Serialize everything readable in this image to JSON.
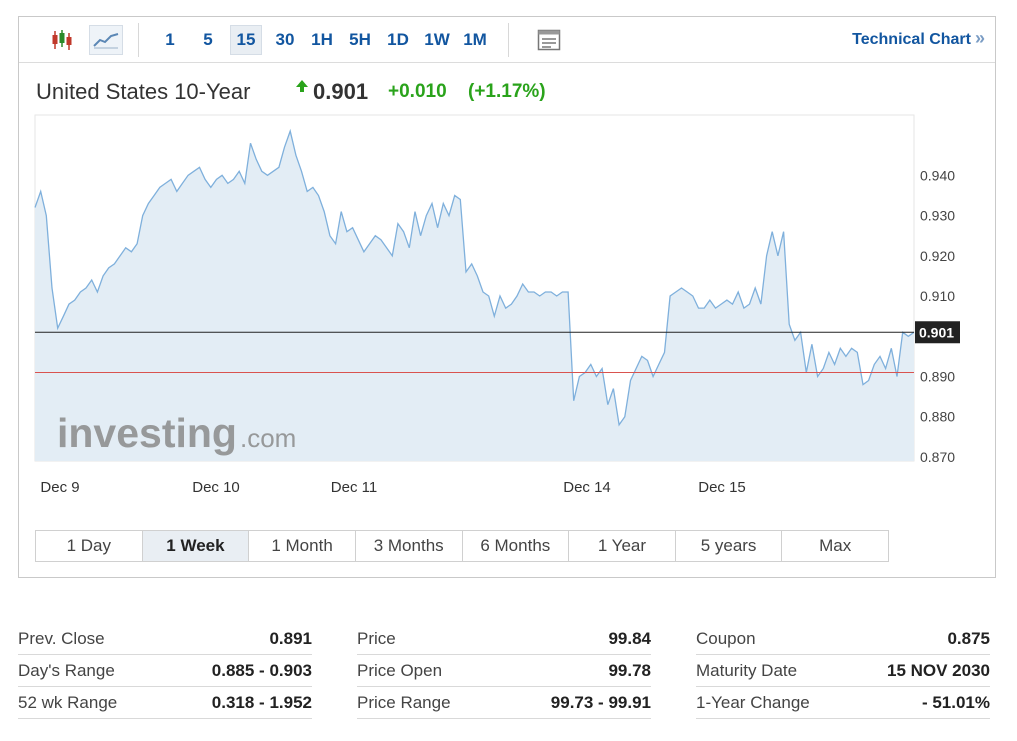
{
  "toolbar": {
    "chart_type_icons": [
      "candlestick-icon",
      "area-line-icon"
    ],
    "intervals": [
      "1",
      "5",
      "15",
      "30",
      "1H",
      "5H",
      "1D",
      "1W",
      "1M"
    ],
    "active_interval": "15",
    "table_icon": "table-icon",
    "technical_chart_label": "Technical Chart",
    "technical_chart_arrow": "»"
  },
  "quote": {
    "name": "United States 10-Year",
    "direction_icon": "up-arrow-icon",
    "last": "0.901",
    "change": "+0.010",
    "change_pct": "(+1.17%)",
    "up_color": "#2aa31b"
  },
  "watermark": {
    "brand": "investing",
    "suffix": ".com"
  },
  "chart_data": {
    "type": "area",
    "x_tick_labels": [
      "Dec 9",
      "Dec 10",
      "Dec 11",
      "Dec 14",
      "Dec 15"
    ],
    "y_tick_labels": [
      "0.940",
      "0.930",
      "0.920",
      "0.910",
      "0.901",
      "0.890",
      "0.880",
      "0.870"
    ],
    "ylim": [
      0.869,
      0.955
    ],
    "grid": false,
    "current_price_label": "0.901",
    "reference_lines": [
      {
        "value": 0.901,
        "color": "#222222",
        "meaning": "last price"
      },
      {
        "value": 0.891,
        "color": "#d9534f",
        "meaning": "previous close"
      }
    ],
    "series": [
      {
        "color": "#7fb0dc",
        "values": [
          0.932,
          0.936,
          0.93,
          0.912,
          0.902,
          0.905,
          0.908,
          0.909,
          0.911,
          0.912,
          0.914,
          0.911,
          0.915,
          0.917,
          0.918,
          0.92,
          0.922,
          0.921,
          0.923,
          0.93,
          0.933,
          0.935,
          0.937,
          0.938,
          0.939,
          0.936,
          0.938,
          0.94,
          0.941,
          0.942,
          0.939,
          0.937,
          0.939,
          0.94,
          0.938,
          0.939,
          0.941,
          0.938,
          0.948,
          0.944,
          0.941,
          0.94,
          0.941,
          0.942,
          0.947,
          0.951,
          0.945,
          0.941,
          0.936,
          0.937,
          0.935,
          0.931,
          0.925,
          0.923,
          0.931,
          0.926,
          0.927,
          0.924,
          0.921,
          0.923,
          0.925,
          0.924,
          0.922,
          0.92,
          0.928,
          0.926,
          0.922,
          0.931,
          0.925,
          0.93,
          0.933,
          0.927,
          0.933,
          0.93,
          0.935,
          0.934,
          0.916,
          0.918,
          0.915,
          0.911,
          0.91,
          0.905,
          0.91,
          0.907,
          0.908,
          0.91,
          0.913,
          0.911,
          0.911,
          0.91,
          0.911,
          0.911,
          0.91,
          0.911,
          0.911,
          0.884,
          0.89,
          0.891,
          0.893,
          0.89,
          0.892,
          0.883,
          0.887,
          0.878,
          0.88,
          0.889,
          0.892,
          0.895,
          0.894,
          0.89,
          0.893,
          0.896,
          0.91,
          0.911,
          0.912,
          0.911,
          0.91,
          0.907,
          0.907,
          0.909,
          0.907,
          0.908,
          0.909,
          0.908,
          0.911,
          0.907,
          0.908,
          0.912,
          0.908,
          0.92,
          0.926,
          0.92,
          0.926,
          0.903,
          0.899,
          0.901,
          0.891,
          0.898,
          0.89,
          0.892,
          0.896,
          0.893,
          0.897,
          0.895,
          0.897,
          0.896,
          0.888,
          0.889,
          0.893,
          0.895,
          0.892,
          0.897,
          0.89,
          0.901,
          0.9,
          0.901
        ]
      }
    ]
  },
  "ranges": {
    "buttons": [
      "1 Day",
      "1 Week",
      "1 Month",
      "3 Months",
      "6 Months",
      "1 Year",
      "5 years",
      "Max"
    ],
    "active": "1 Week"
  },
  "stats": {
    "col1": [
      {
        "label": "Prev. Close",
        "value": "0.891"
      },
      {
        "label": "Day's Range",
        "value": "0.885 - 0.903"
      },
      {
        "label": "52 wk Range",
        "value": "0.318 - 1.952"
      }
    ],
    "col2": [
      {
        "label": "Price",
        "value": "99.84"
      },
      {
        "label": "Price Open",
        "value": "99.78"
      },
      {
        "label": "Price Range",
        "value": "99.73 - 99.91"
      }
    ],
    "col3": [
      {
        "label": "Coupon",
        "value": "0.875"
      },
      {
        "label": "Maturity Date",
        "value": "15 NOV 2030"
      },
      {
        "label": "1-Year Change",
        "value": "- 51.01%"
      }
    ]
  }
}
